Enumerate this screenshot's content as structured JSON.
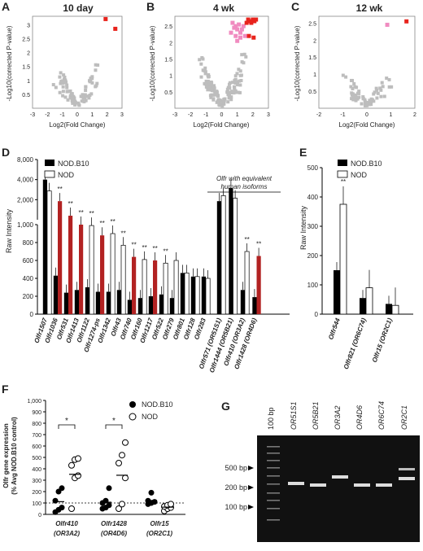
{
  "panels": {
    "A": {
      "letter": "A",
      "title": "10 day",
      "ylabel": "-Log10(corrected P-value)",
      "xlabel": "Log2(Fold Change)",
      "xticks": [
        "-3",
        "-2",
        "-1",
        "0",
        "1",
        "2",
        "3"
      ],
      "yticks": [
        "0.5",
        "1",
        "1.5",
        "2",
        "2.5",
        "3"
      ]
    },
    "B": {
      "letter": "B",
      "title": "4 wk",
      "ylabel": "-Log10(corrected P-value)",
      "xlabel": "Log2(Fold Change)",
      "xticks": [
        "-3",
        "-2",
        "-1",
        "0",
        "1",
        "2",
        "3"
      ],
      "yticks": [
        "0.5",
        "1",
        "1.5",
        "2",
        "2.5"
      ]
    },
    "C": {
      "letter": "C",
      "title": "12 wk",
      "ylabel": "-Log10(corrected P-value)",
      "xlabel": "Log2(Fold Change)",
      "xticks": [
        "-2",
        "-1",
        "0",
        "1",
        "2"
      ],
      "yticks": [
        "0.5",
        "1",
        "1.5",
        "2",
        "2.5"
      ]
    },
    "D": {
      "letter": "D",
      "ylabel": "Raw Intensity",
      "yticks": [
        "0",
        "200",
        "400",
        "600",
        "800",
        "1,000",
        "2,000",
        "4,000",
        "8,000"
      ],
      "legend": [
        "NOD.B10",
        "NOD"
      ],
      "group_note": [
        "Olfr with equivalent",
        "human isoforms"
      ]
    },
    "E": {
      "letter": "E",
      "ylabel": "Raw Intensity",
      "yticks": [
        "0",
        "100",
        "200",
        "300",
        "400",
        "500"
      ],
      "legend": [
        "NOD.B10",
        "NOD"
      ]
    },
    "F": {
      "letter": "F",
      "ylabel": [
        "Olfr gene expression",
        "(% Avg NOD.B10 control)"
      ],
      "yticks": [
        "0",
        "100",
        "200",
        "300",
        "400",
        "500",
        "600",
        "700",
        "800",
        "900",
        "1,000"
      ],
      "legend": [
        "NOD.B10",
        "NOD"
      ]
    },
    "G": {
      "letter": "G",
      "ladder_label": "100 bp",
      "lanes": [
        "OR51S1",
        "OR5B21",
        "OR3A2",
        "OR4D6",
        "OR6C74",
        "OR2C1"
      ],
      "markers": [
        "500 bp",
        "200 bp",
        "100 bp"
      ]
    }
  },
  "colors": {
    "black": "#000000",
    "red": "#b22222",
    "pink": "#f08bc0",
    "brightred": "#e8231c",
    "gray": "#bdbdbd"
  },
  "chart_data": [
    {
      "panel": "A",
      "type": "scatter",
      "highlight": [
        {
          "x": 1.9,
          "y": 3.2
        },
        {
          "x": 2.55,
          "y": 2.85
        }
      ],
      "xlim": [
        -3,
        3
      ],
      "ylim": [
        0,
        3.3
      ]
    },
    {
      "panel": "B",
      "type": "scatter",
      "highlight_red": [
        {
          "x": 1.7,
          "y": 2.7
        },
        {
          "x": 1.8,
          "y": 2.65
        },
        {
          "x": 1.9,
          "y": 2.6
        },
        {
          "x": 2.0,
          "y": 2.7
        },
        {
          "x": 2.1,
          "y": 2.65
        },
        {
          "x": 2.2,
          "y": 2.7
        },
        {
          "x": 1.6,
          "y": 2.6
        },
        {
          "x": 2.05,
          "y": 2.15
        },
        {
          "x": 1.75,
          "y": 2.2
        }
      ],
      "highlight_pink": [
        {
          "x": 0.7,
          "y": 2.6
        },
        {
          "x": 0.8,
          "y": 2.45
        },
        {
          "x": 0.9,
          "y": 2.5
        },
        {
          "x": 1.0,
          "y": 2.4
        },
        {
          "x": 1.1,
          "y": 2.55
        },
        {
          "x": 1.2,
          "y": 2.3
        },
        {
          "x": 1.3,
          "y": 2.4
        },
        {
          "x": 1.4,
          "y": 2.5
        },
        {
          "x": 0.9,
          "y": 2.2
        },
        {
          "x": 1.0,
          "y": 2.05
        },
        {
          "x": 1.2,
          "y": 2.15
        },
        {
          "x": 1.5,
          "y": 2.2
        },
        {
          "x": 0.6,
          "y": 2.3
        }
      ],
      "xlim": [
        -3,
        3
      ],
      "ylim": [
        0,
        2.8
      ]
    },
    {
      "panel": "C",
      "type": "scatter",
      "highlight": [
        {
          "x": 1.65,
          "y": 2.55
        }
      ],
      "pink": [
        {
          "x": 0.85,
          "y": 2.45
        }
      ],
      "xlim": [
        -2,
        2
      ],
      "ylim": [
        0,
        2.7
      ]
    },
    {
      "panel": "D",
      "type": "bar",
      "categories": [
        "Olfr1507",
        "Olfr1036",
        "Olfr531",
        "Olfr1413",
        "Olfr1122",
        "Olfr1274-ps",
        "Olfr1342",
        "Olfr43",
        "Olfr740",
        "Olfr160",
        "Olfr1217",
        "Olfr522",
        "Olfr279",
        "Olfr801",
        "Olfr128",
        "Olfr283",
        "Olfr571 (OR51S1)",
        "Olfr1444 (OR5B21)",
        "Olfr410 (OR3A2)",
        "Olfr1428 (OR4D6)"
      ],
      "series": [
        {
          "name": "NOD.B10",
          "values": [
            4000,
            430,
            240,
            270,
            300,
            250,
            250,
            270,
            160,
            180,
            200,
            220,
            180,
            460,
            420,
            420,
            1900,
            3000,
            270,
            190
          ]
        },
        {
          "name": "NOD",
          "values": [
            2700,
            1900,
            1150,
            1000,
            990,
            880,
            900,
            770,
            640,
            610,
            600,
            570,
            600,
            460,
            420,
            400,
            2300,
            2100,
            700,
            650
          ]
        }
      ],
      "nod_red": [
        false,
        true,
        true,
        true,
        false,
        true,
        false,
        false,
        true,
        false,
        true,
        false,
        false,
        false,
        false,
        false,
        false,
        false,
        false,
        true
      ],
      "significance": [
        "",
        "**",
        "**",
        "**",
        "**",
        "**",
        "**",
        "**",
        "**",
        "**",
        "**",
        "**",
        "",
        "",
        "",
        "",
        "",
        "",
        "**",
        "**"
      ]
    },
    {
      "panel": "E",
      "type": "bar",
      "categories": [
        "Olfr544",
        "Olfr821 (OR6C74)",
        "Olfr15 (OR2C1)"
      ],
      "series": [
        {
          "name": "NOD.B10",
          "values": [
            150,
            55,
            35
          ]
        },
        {
          "name": "NOD",
          "values": [
            375,
            90,
            30
          ]
        }
      ],
      "significance": [
        "**",
        "",
        ""
      ],
      "ylim": [
        0,
        500
      ]
    },
    {
      "panel": "F",
      "type": "scatter",
      "categories": [
        "Olfr410 (OR3A2)",
        "Olfr1428 (OR4D6)",
        "Olfr15 (OR2C1)"
      ],
      "series": [
        {
          "name": "NOD.B10",
          "values": [
            [
              20,
              40,
              60,
              120,
              200,
              230
            ],
            [
              50,
              60,
              80,
              100,
              120,
              230
            ],
            [
              90,
              100,
              110,
              120,
              190
            ]
          ]
        },
        {
          "name": "NOD",
          "values": [
            [
              50,
              320,
              340,
              430,
              480,
              490
            ],
            [
              50,
              90,
              320,
              450,
              520,
              630
            ],
            [
              30,
              50,
              60,
              70,
              80,
              90
            ]
          ]
        }
      ],
      "significance": [
        "*",
        "*",
        ""
      ],
      "ylim": [
        0,
        1000
      ]
    }
  ]
}
